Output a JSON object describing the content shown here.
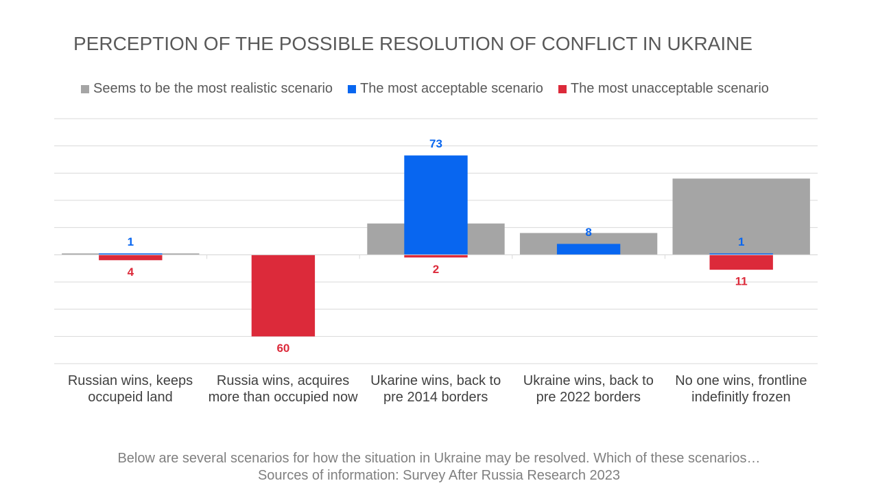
{
  "chart_data": {
    "type": "bar",
    "title": "PERCEPTION OF THE POSSIBLE RESOLUTION OF CONFLICT IN UKRAINE",
    "categories": [
      "Russian wins, keeps occupeid land",
      "Russia wins, acquires more than occupied now",
      "Ukarine wins, back to pre 2014 borders",
      "Ukraine wins, back to pre 2022 borders",
      "No one wins, frontline indefinitly frozen"
    ],
    "series": [
      {
        "name": "Seems to be the most realistic scenario",
        "color": "#a5a5a5",
        "values": [
          1,
          null,
          23,
          16,
          56
        ],
        "data_labels": false
      },
      {
        "name": "The most acceptable scenario",
        "color": "#0866f0",
        "values": [
          1,
          null,
          73,
          8,
          1
        ],
        "data_labels": true
      },
      {
        "name": "The most unacceptable scenario",
        "color": "#dc2a3a",
        "values": [
          -4,
          -60,
          -2,
          null,
          -11
        ],
        "value_labels": [
          "4",
          "60",
          "2",
          null,
          "11"
        ],
        "data_labels": true
      }
    ],
    "ylim": [
      -80,
      100
    ],
    "yticks": [
      -80,
      -60,
      -40,
      -20,
      0,
      20,
      40,
      60,
      80,
      100
    ],
    "grid": true,
    "notes": [
      "Below are several scenarios for how the situation in Ukraine may be resolved. Which of these scenarios…",
      "Sources of information: Survey After Russia Research 2023"
    ]
  }
}
